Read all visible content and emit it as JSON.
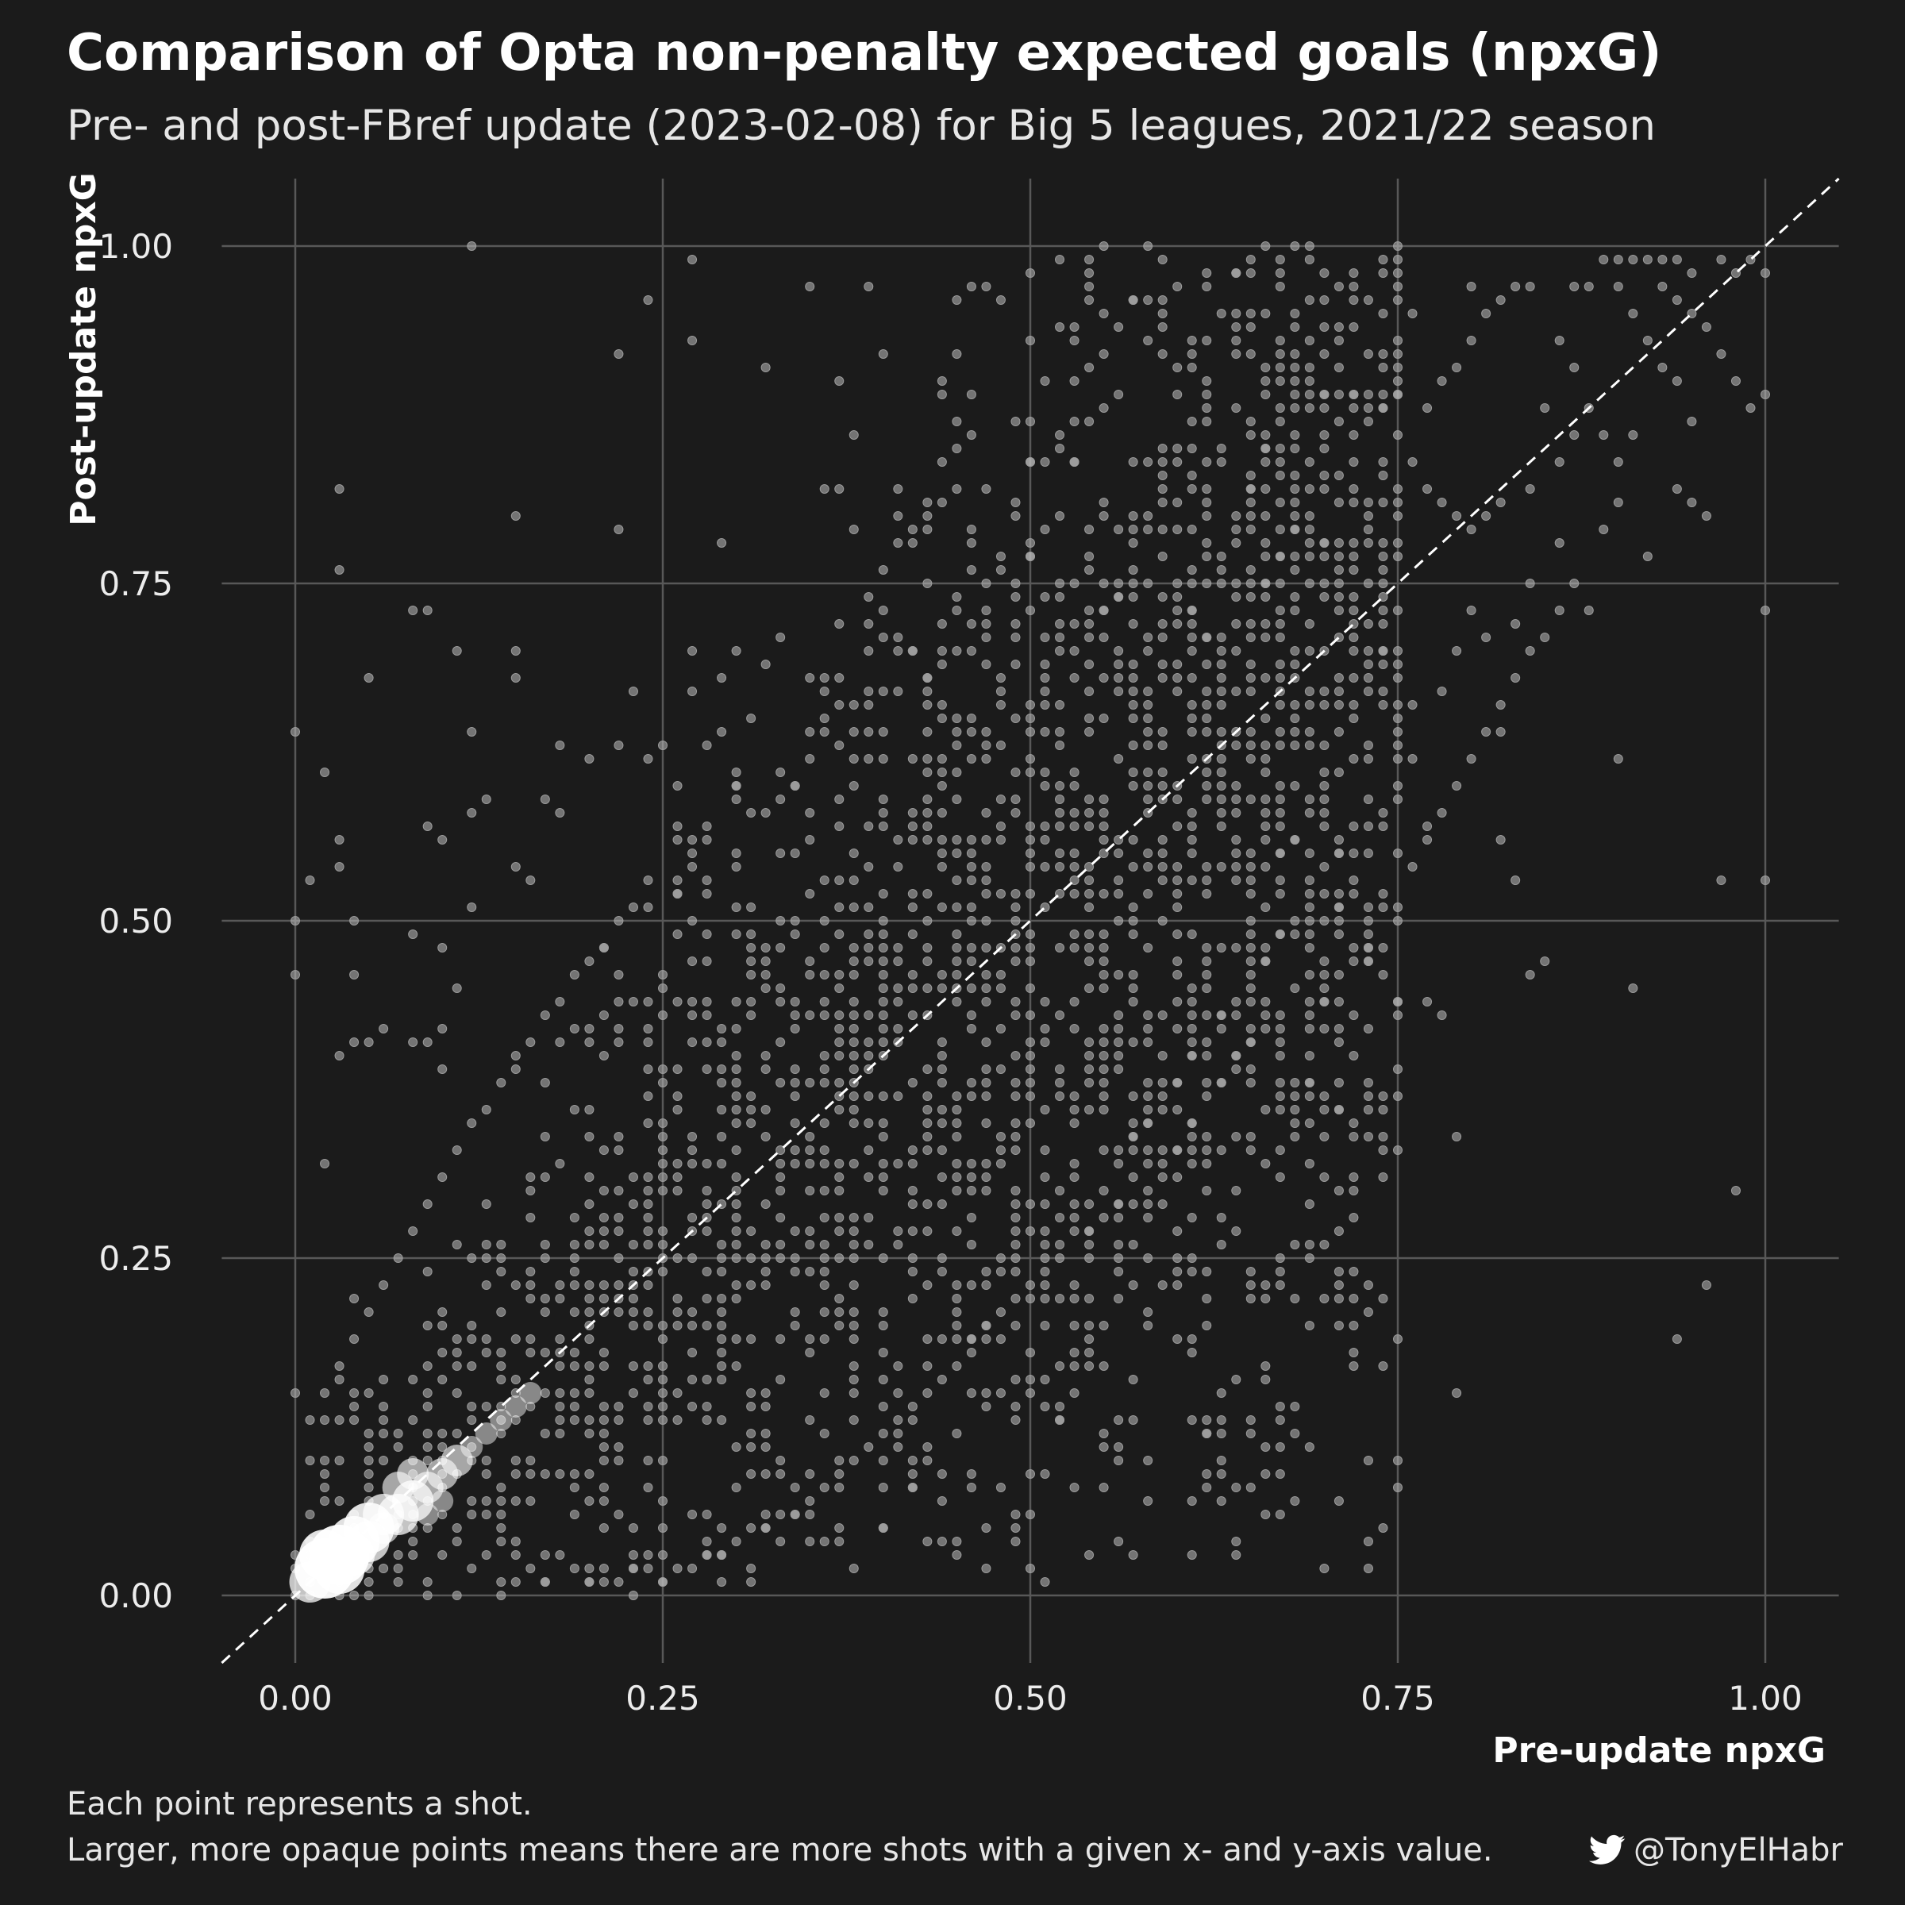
{
  "chart_data": {
    "type": "scatter",
    "title": "Comparison of Opta non-penalty expected goals (npxG)",
    "subtitle": "Pre- and post-FBref update (2023-02-08) for Big 5 leagues, 2021/22 season",
    "xlabel": "Pre-update npxG",
    "ylabel": "Post-update npxG",
    "xlim": [
      -0.05,
      1.05
    ],
    "ylim": [
      -0.05,
      1.05
    ],
    "x_ticks": [
      "0.00",
      "0.25",
      "0.50",
      "0.75",
      "1.00"
    ],
    "y_ticks": [
      "0.00",
      "0.25",
      "0.50",
      "0.75",
      "1.00"
    ],
    "grid": true,
    "reference_line": {
      "type": "y=x",
      "style": "dashed",
      "color": "#ffffff"
    },
    "point_color": "#bdbdbd",
    "highlight_color": "#ffffff",
    "points": [
      [
        0.12,
        1.0
      ],
      [
        0.27,
        0.99
      ],
      [
        0.24,
        0.96
      ],
      [
        0.35,
        0.97
      ],
      [
        0.46,
        0.97
      ],
      [
        0.48,
        0.96
      ],
      [
        0.57,
        0.96
      ],
      [
        0.64,
        0.98
      ],
      [
        0.67,
        0.97
      ],
      [
        0.4,
        0.92
      ],
      [
        0.22,
        0.92
      ],
      [
        0.27,
        0.93
      ],
      [
        0.03,
        0.82
      ],
      [
        0.03,
        0.76
      ],
      [
        0.15,
        0.8
      ],
      [
        0.22,
        0.79
      ],
      [
        0.37,
        0.9
      ],
      [
        0.36,
        0.82
      ],
      [
        0.37,
        0.82
      ],
      [
        0.29,
        0.78
      ],
      [
        0.41,
        0.78
      ],
      [
        0.42,
        0.78
      ],
      [
        0.43,
        0.79
      ],
      [
        0.46,
        0.86
      ],
      [
        0.49,
        0.87
      ],
      [
        0.5,
        0.84
      ],
      [
        0.52,
        0.85
      ],
      [
        0.53,
        0.84
      ],
      [
        0.55,
        0.88
      ],
      [
        0.0,
        0.64
      ],
      [
        0.02,
        0.61
      ],
      [
        0.0,
        0.5
      ],
      [
        0.0,
        0.46
      ],
      [
        0.01,
        0.53
      ],
      [
        0.03,
        0.56
      ],
      [
        0.03,
        0.54
      ],
      [
        0.04,
        0.5
      ],
      [
        0.04,
        0.46
      ],
      [
        0.08,
        0.73
      ],
      [
        0.09,
        0.73
      ],
      [
        0.11,
        0.7
      ],
      [
        0.12,
        0.64
      ],
      [
        0.15,
        0.7
      ],
      [
        0.15,
        0.68
      ],
      [
        0.05,
        0.68
      ],
      [
        0.09,
        0.57
      ],
      [
        0.1,
        0.56
      ],
      [
        0.12,
        0.51
      ],
      [
        0.12,
        0.58
      ],
      [
        0.13,
        0.59
      ],
      [
        0.15,
        0.54
      ],
      [
        0.16,
        0.53
      ],
      [
        0.17,
        0.59
      ],
      [
        0.18,
        0.58
      ],
      [
        0.18,
        0.63
      ],
      [
        0.2,
        0.62
      ],
      [
        0.22,
        0.63
      ],
      [
        0.23,
        0.67
      ],
      [
        0.25,
        0.63
      ],
      [
        0.26,
        0.6
      ],
      [
        0.29,
        0.64
      ],
      [
        0.3,
        0.7
      ],
      [
        0.32,
        0.69
      ],
      [
        0.4,
        0.71
      ],
      [
        0.43,
        0.75
      ],
      [
        0.05,
        0.41
      ],
      [
        0.06,
        0.42
      ],
      [
        0.08,
        0.41
      ],
      [
        0.09,
        0.41
      ],
      [
        0.08,
        0.49
      ],
      [
        0.1,
        0.48
      ],
      [
        0.11,
        0.45
      ],
      [
        0.03,
        0.4
      ],
      [
        0.04,
        0.41
      ],
      [
        0.02,
        0.32
      ],
      [
        0.1,
        0.39
      ],
      [
        0.55,
        0.2
      ],
      [
        0.56,
        0.24
      ],
      [
        0.57,
        0.23
      ],
      [
        0.61,
        0.19
      ],
      [
        0.62,
        0.2
      ],
      [
        0.62,
        0.12
      ],
      [
        0.63,
        0.12
      ],
      [
        0.65,
        0.12
      ],
      [
        0.66,
        0.11
      ],
      [
        0.67,
        0.11
      ],
      [
        0.67,
        0.13
      ],
      [
        0.64,
        0.04
      ],
      [
        0.53,
        0.08
      ],
      [
        0.51,
        0.01
      ],
      [
        0.5,
        0.02
      ],
      [
        0.48,
        0.08
      ],
      [
        0.67,
        0.25
      ],
      [
        0.69,
        0.25
      ],
      [
        0.73,
        0.34
      ],
      [
        0.7,
        0.36
      ],
      [
        0.69,
        0.38
      ],
      [
        0.71,
        0.38
      ],
      [
        0.71,
        0.36
      ],
      [
        0.74,
        0.34
      ],
      [
        0.79,
        0.34
      ],
      [
        0.75,
        0.1
      ],
      [
        0.75,
        0.08
      ],
      [
        0.74,
        0.05
      ],
      [
        0.73,
        0.1
      ],
      [
        0.79,
        0.15
      ],
      [
        0.94,
        0.19
      ],
      [
        0.96,
        0.23
      ],
      [
        0.98,
        0.3
      ],
      [
        0.97,
        0.53
      ],
      [
        1.0,
        0.53
      ],
      [
        1.0,
        0.73
      ],
      [
        0.91,
        0.45
      ],
      [
        0.9,
        0.62
      ],
      [
        0.92,
        0.77
      ],
      [
        0.85,
        0.47
      ],
      [
        0.84,
        0.46
      ],
      [
        0.83,
        0.53
      ],
      [
        0.82,
        0.56
      ],
      [
        0.82,
        0.64
      ],
      [
        0.77,
        0.56
      ],
      [
        0.77,
        0.44
      ],
      [
        0.78,
        0.43
      ],
      [
        0.75,
        0.44
      ],
      [
        0.71,
        0.51
      ],
      [
        0.72,
        0.52
      ],
      [
        0.73,
        0.48
      ],
      [
        0.73,
        0.5
      ],
      [
        0.67,
        0.55
      ],
      [
        0.68,
        0.56
      ],
      [
        0.69,
        0.48
      ],
      [
        0.7,
        0.44
      ],
      [
        0.64,
        0.8
      ],
      [
        0.65,
        0.82
      ],
      [
        0.66,
        0.85
      ],
      [
        0.67,
        0.85
      ],
      [
        0.68,
        0.88
      ],
      [
        0.66,
        0.9
      ],
      [
        0.67,
        0.9
      ],
      [
        0.7,
        0.89
      ],
      [
        0.71,
        0.89
      ],
      [
        0.72,
        0.89
      ],
      [
        0.73,
        0.89
      ],
      [
        0.74,
        0.88
      ],
      [
        0.75,
        0.89
      ],
      [
        0.72,
        0.96
      ],
      [
        0.76,
        0.95
      ],
      [
        0.8,
        0.97
      ],
      [
        0.82,
        0.96
      ],
      [
        0.83,
        0.97
      ],
      [
        0.84,
        0.97
      ],
      [
        0.87,
        0.97
      ],
      [
        0.88,
        0.97
      ],
      [
        0.89,
        0.99
      ],
      [
        0.9,
        0.99
      ],
      [
        0.91,
        0.99
      ],
      [
        0.92,
        0.99
      ],
      [
        0.93,
        0.99
      ],
      [
        0.94,
        0.99
      ],
      [
        0.95,
        0.98
      ],
      [
        0.97,
        0.99
      ],
      [
        0.98,
        0.98
      ],
      [
        0.99,
        0.99
      ],
      [
        1.0,
        0.98
      ],
      [
        1.0,
        0.89
      ],
      [
        0.99,
        0.88
      ],
      [
        0.98,
        0.9
      ],
      [
        0.97,
        0.92
      ],
      [
        0.96,
        0.94
      ],
      [
        0.95,
        0.95
      ],
      [
        0.94,
        0.96
      ],
      [
        0.93,
        0.97
      ],
      [
        0.9,
        0.97
      ],
      [
        0.91,
        0.95
      ],
      [
        0.92,
        0.93
      ],
      [
        0.93,
        0.91
      ],
      [
        0.94,
        0.9
      ],
      [
        0.95,
        0.87
      ],
      [
        0.94,
        0.82
      ],
      [
        0.95,
        0.81
      ],
      [
        0.96,
        0.8
      ],
      [
        0.88,
        0.88
      ],
      [
        0.87,
        0.86
      ],
      [
        0.86,
        0.84
      ],
      [
        0.85,
        0.88
      ],
      [
        0.84,
        0.82
      ],
      [
        0.82,
        0.81
      ],
      [
        0.81,
        0.8
      ],
      [
        0.8,
        0.79
      ],
      [
        0.79,
        0.8
      ],
      [
        0.78,
        0.81
      ],
      [
        0.77,
        0.82
      ],
      [
        0.76,
        0.84
      ],
      [
        0.75,
        0.86
      ],
      [
        0.77,
        0.88
      ],
      [
        0.78,
        0.9
      ],
      [
        0.79,
        0.91
      ],
      [
        0.8,
        0.93
      ],
      [
        0.81,
        0.95
      ],
      [
        0.86,
        0.93
      ],
      [
        0.87,
        0.91
      ],
      [
        0.89,
        0.86
      ],
      [
        0.9,
        0.84
      ],
      [
        0.91,
        0.86
      ],
      [
        0.9,
        0.81
      ],
      [
        0.89,
        0.79
      ],
      [
        0.87,
        0.75
      ],
      [
        0.88,
        0.73
      ],
      [
        0.86,
        0.78
      ],
      [
        0.84,
        0.75
      ],
      [
        0.83,
        0.72
      ],
      [
        0.81,
        0.71
      ],
      [
        0.8,
        0.73
      ],
      [
        0.79,
        0.7
      ],
      [
        0.78,
        0.67
      ],
      [
        0.76,
        0.66
      ],
      [
        0.75,
        0.68
      ],
      [
        0.74,
        0.7
      ],
      [
        0.73,
        0.72
      ],
      [
        0.72,
        0.74
      ],
      [
        0.71,
        0.76
      ],
      [
        0.7,
        0.78
      ],
      [
        0.69,
        0.8
      ],
      [
        0.68,
        0.79
      ],
      [
        0.67,
        0.77
      ],
      [
        0.66,
        0.75
      ],
      [
        0.65,
        0.74
      ],
      [
        0.64,
        0.72
      ],
      [
        0.63,
        0.7
      ],
      [
        0.62,
        0.71
      ],
      [
        0.61,
        0.73
      ],
      [
        0.6,
        0.75
      ],
      [
        0.59,
        0.77
      ],
      [
        0.58,
        0.79
      ],
      [
        0.57,
        0.76
      ],
      [
        0.56,
        0.74
      ],
      [
        0.55,
        0.73
      ],
      [
        0.54,
        0.71
      ],
      [
        0.53,
        0.7
      ],
      [
        0.52,
        0.72
      ],
      [
        0.51,
        0.74
      ],
      [
        0.5,
        0.77
      ],
      [
        0.49,
        0.75
      ],
      [
        0.47,
        0.73
      ],
      [
        0.46,
        0.7
      ],
      [
        0.44,
        0.69
      ],
      [
        0.43,
        0.68
      ],
      [
        0.42,
        0.7
      ],
      [
        0.41,
        0.67
      ],
      [
        0.39,
        0.66
      ],
      [
        0.38,
        0.64
      ],
      [
        0.37,
        0.63
      ],
      [
        0.36,
        0.65
      ],
      [
        0.35,
        0.62
      ],
      [
        0.34,
        0.6
      ],
      [
        0.33,
        0.59
      ],
      [
        0.31,
        0.58
      ],
      [
        0.3,
        0.6
      ],
      [
        0.28,
        0.56
      ],
      [
        0.27,
        0.55
      ],
      [
        0.26,
        0.52
      ],
      [
        0.24,
        0.53
      ],
      [
        0.23,
        0.51
      ],
      [
        0.22,
        0.5
      ],
      [
        0.21,
        0.48
      ],
      [
        0.2,
        0.47
      ],
      [
        0.19,
        0.46
      ],
      [
        0.18,
        0.44
      ],
      [
        0.17,
        0.43
      ],
      [
        0.16,
        0.41
      ],
      [
        0.15,
        0.4
      ],
      [
        0.14,
        0.38
      ],
      [
        0.13,
        0.36
      ],
      [
        0.12,
        0.35
      ],
      [
        0.11,
        0.33
      ],
      [
        0.1,
        0.31
      ],
      [
        0.09,
        0.29
      ],
      [
        0.08,
        0.27
      ],
      [
        0.07,
        0.25
      ],
      [
        0.06,
        0.23
      ],
      [
        0.05,
        0.21
      ],
      [
        0.04,
        0.19
      ],
      [
        0.03,
        0.17
      ],
      [
        0.02,
        0.15
      ],
      [
        0.01,
        0.13
      ],
      [
        0.0,
        0.15
      ],
      [
        0.01,
        0.1
      ],
      [
        0.02,
        0.07
      ],
      [
        0.04,
        0.0
      ],
      [
        0.17,
        0.01
      ],
      [
        0.22,
        0.01
      ],
      [
        0.23,
        0.02
      ],
      [
        0.25,
        0.01
      ],
      [
        0.29,
        0.01
      ],
      [
        0.31,
        0.01
      ],
      [
        0.33,
        0.04
      ],
      [
        0.35,
        0.04
      ],
      [
        0.36,
        0.04
      ],
      [
        0.38,
        0.02
      ],
      [
        0.4,
        0.05
      ],
      [
        0.42,
        0.08
      ],
      [
        0.44,
        0.07
      ],
      [
        0.44,
        0.04
      ],
      [
        0.45,
        0.04
      ],
      [
        0.47,
        0.05
      ],
      [
        0.43,
        0.1
      ],
      [
        0.45,
        0.12
      ],
      [
        0.47,
        0.14
      ],
      [
        0.49,
        0.16
      ],
      [
        0.5,
        0.18
      ],
      [
        0.52,
        0.13
      ],
      [
        0.53,
        0.15
      ],
      [
        0.54,
        0.18
      ],
      [
        0.51,
        0.22
      ],
      [
        0.52,
        0.25
      ],
      [
        0.54,
        0.27
      ],
      [
        0.56,
        0.29
      ],
      [
        0.57,
        0.31
      ],
      [
        0.58,
        0.3
      ],
      [
        0.6,
        0.33
      ],
      [
        0.61,
        0.35
      ],
      [
        0.62,
        0.37
      ],
      [
        0.63,
        0.38
      ],
      [
        0.64,
        0.4
      ],
      [
        0.65,
        0.41
      ],
      [
        0.66,
        0.43
      ],
      [
        0.68,
        0.45
      ],
      [
        0.69,
        0.46
      ],
      [
        0.7,
        0.42
      ],
      [
        0.71,
        0.41
      ],
      [
        0.73,
        0.47
      ],
      [
        0.74,
        0.52
      ],
      [
        0.76,
        0.54
      ],
      [
        0.77,
        0.57
      ],
      [
        0.78,
        0.58
      ],
      [
        0.79,
        0.6
      ],
      [
        0.8,
        0.62
      ],
      [
        0.81,
        0.64
      ],
      [
        0.82,
        0.66
      ],
      [
        0.83,
        0.68
      ],
      [
        0.84,
        0.7
      ],
      [
        0.85,
        0.71
      ],
      [
        0.86,
        0.73
      ],
      [
        0.76,
        0.62
      ],
      [
        0.75,
        0.6
      ],
      [
        0.74,
        0.58
      ],
      [
        0.72,
        0.57
      ],
      [
        0.71,
        0.55
      ],
      [
        0.7,
        0.54
      ],
      [
        0.69,
        0.52
      ],
      [
        0.68,
        0.5
      ],
      [
        0.67,
        0.49
      ],
      [
        0.66,
        0.47
      ],
      [
        0.65,
        0.46
      ],
      [
        0.64,
        0.44
      ],
      [
        0.63,
        0.43
      ],
      [
        0.62,
        0.41
      ],
      [
        0.61,
        0.4
      ],
      [
        0.6,
        0.38
      ],
      [
        0.59,
        0.36
      ],
      [
        0.58,
        0.35
      ],
      [
        0.57,
        0.34
      ],
      [
        0.56,
        0.32
      ],
      [
        0.55,
        0.3
      ],
      [
        0.54,
        0.29
      ],
      [
        0.53,
        0.28
      ],
      [
        0.52,
        0.26
      ],
      [
        0.51,
        0.24
      ],
      [
        0.5,
        0.23
      ],
      [
        0.49,
        0.22
      ],
      [
        0.48,
        0.21
      ],
      [
        0.47,
        0.2
      ],
      [
        0.46,
        0.19
      ],
      [
        0.45,
        0.17
      ],
      [
        0.44,
        0.16
      ],
      [
        0.43,
        0.15
      ],
      [
        0.42,
        0.14
      ],
      [
        0.41,
        0.13
      ],
      [
        0.4,
        0.12
      ],
      [
        0.39,
        0.11
      ],
      [
        0.38,
        0.1
      ],
      [
        0.37,
        0.09
      ],
      [
        0.36,
        0.08
      ],
      [
        0.35,
        0.07
      ],
      [
        0.34,
        0.06
      ],
      [
        0.33,
        0.06
      ],
      [
        0.32,
        0.05
      ],
      [
        0.31,
        0.05
      ],
      [
        0.3,
        0.04
      ],
      [
        0.29,
        0.03
      ],
      [
        0.28,
        0.03
      ],
      [
        0.27,
        0.02
      ],
      [
        0.26,
        0.02
      ],
      [
        0.25,
        0.03
      ],
      [
        0.24,
        0.02
      ],
      [
        0.21,
        0.02
      ],
      [
        0.2,
        0.01
      ],
      [
        0.19,
        0.02
      ],
      [
        0.18,
        0.03
      ]
    ],
    "dense_points": [
      [
        0.02,
        0.02,
        5
      ],
      [
        0.03,
        0.03,
        5
      ],
      [
        0.04,
        0.04,
        4
      ],
      [
        0.05,
        0.05,
        4
      ],
      [
        0.02,
        0.03,
        4
      ],
      [
        0.03,
        0.02,
        4
      ],
      [
        0.06,
        0.06,
        3
      ],
      [
        0.07,
        0.06,
        3
      ],
      [
        0.08,
        0.07,
        3
      ],
      [
        0.04,
        0.03,
        3
      ],
      [
        0.05,
        0.04,
        3
      ],
      [
        0.01,
        0.01,
        3
      ],
      [
        0.09,
        0.08,
        2
      ],
      [
        0.1,
        0.09,
        2
      ],
      [
        0.11,
        0.1,
        2
      ],
      [
        0.06,
        0.05,
        2
      ],
      [
        0.07,
        0.08,
        2
      ],
      [
        0.08,
        0.09,
        2
      ],
      [
        0.12,
        0.11,
        1
      ],
      [
        0.13,
        0.12,
        1
      ],
      [
        0.14,
        0.13,
        1
      ],
      [
        0.1,
        0.07,
        1
      ],
      [
        0.09,
        0.06,
        1
      ],
      [
        0.15,
        0.14,
        1
      ],
      [
        0.16,
        0.15,
        1
      ]
    ]
  },
  "caption": {
    "line1": "Each point represents a shot.",
    "line2": "Larger, more opaque points means there are more shots with a given x- and y-axis value."
  },
  "credit": {
    "icon": "twitter-bird-icon",
    "handle": "@TonyElHabr"
  }
}
